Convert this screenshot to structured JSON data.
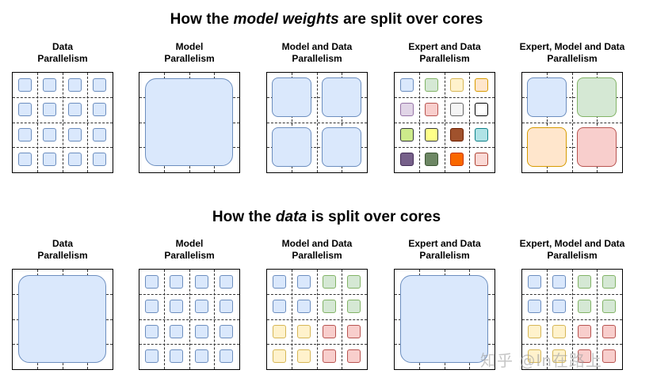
{
  "sections": [
    {
      "id": "weights",
      "title_prefix": "How the ",
      "title_emph": "model weights",
      "title_suffix": " are split over cores"
    },
    {
      "id": "data",
      "title_prefix": "How the ",
      "title_emph": "data",
      "title_suffix": " is split over cores"
    }
  ],
  "panel_labels": [
    [
      "Data",
      "Parallelism"
    ],
    [
      "Model",
      "Parallelism"
    ],
    [
      "Model and Data",
      "Parallelism"
    ],
    [
      "Expert and Data",
      "Parallelism"
    ],
    [
      "Expert, Model and Data",
      "Parallelism"
    ]
  ],
  "colors": {
    "blue": [
      "#dae8fc",
      "#6c8ebf"
    ],
    "green": [
      "#d5e8d4",
      "#82b366"
    ],
    "yellow": [
      "#fff2cc",
      "#d6b656"
    ],
    "orange": [
      "#ffe6cc",
      "#d79b00"
    ],
    "purple": [
      "#e1d5e7",
      "#9673a6"
    ],
    "red": [
      "#f8cecc",
      "#b85450"
    ],
    "gray": [
      "#f5f5f5",
      "#666666"
    ],
    "white": [
      "#ffffff",
      "#000000"
    ],
    "lime": [
      "#cdeb8b",
      "#36393d"
    ],
    "brightyellow": [
      "#ffff88",
      "#36393d"
    ],
    "brown": [
      "#a0522d",
      "#6d1f00"
    ],
    "cyan": [
      "#b0e3e6",
      "#0e8088"
    ],
    "darkpurple": [
      "#76608a",
      "#432d57"
    ],
    "darkgreen": [
      "#6d8764",
      "#3a5431"
    ],
    "darkorange": [
      "#fa6800",
      "#c73500"
    ],
    "pink": [
      "#fad9d5",
      "#ae4132"
    ]
  },
  "diagrams": {
    "weights": [
      {
        "layout": "small",
        "cells": [
          "blue",
          "blue",
          "blue",
          "blue",
          "blue",
          "blue",
          "blue",
          "blue",
          "blue",
          "blue",
          "blue",
          "blue",
          "blue",
          "blue",
          "blue",
          "blue"
        ]
      },
      {
        "layout": "full",
        "cells": [
          "blue"
        ]
      },
      {
        "layout": "quad",
        "cells": [
          "blue",
          "blue",
          "blue",
          "blue"
        ]
      },
      {
        "layout": "small",
        "cells": [
          "blue",
          "green",
          "yellow",
          "orange",
          "purple",
          "red",
          "gray",
          "white",
          "lime",
          "brightyellow",
          "brown",
          "cyan",
          "darkpurple",
          "darkgreen",
          "darkorange",
          "pink"
        ]
      },
      {
        "layout": "quad",
        "cells": [
          "blue",
          "green",
          "orange",
          "red"
        ]
      }
    ],
    "data": [
      {
        "layout": "full",
        "cells": [
          "blue"
        ]
      },
      {
        "layout": "small",
        "cells": [
          "blue",
          "blue",
          "blue",
          "blue",
          "blue",
          "blue",
          "blue",
          "blue",
          "blue",
          "blue",
          "blue",
          "blue",
          "blue",
          "blue",
          "blue",
          "blue"
        ]
      },
      {
        "layout": "small",
        "cells": [
          "blue",
          "blue",
          "green",
          "green",
          "blue",
          "blue",
          "green",
          "green",
          "yellow",
          "yellow",
          "red",
          "red",
          "yellow",
          "yellow",
          "red",
          "red"
        ]
      },
      {
        "layout": "full",
        "cells": [
          "blue"
        ]
      },
      {
        "layout": "small",
        "cells": [
          "blue",
          "blue",
          "green",
          "green",
          "blue",
          "blue",
          "green",
          "green",
          "yellow",
          "yellow",
          "red",
          "red",
          "yellow",
          "yellow",
          "red",
          "red"
        ]
      }
    ]
  },
  "watermark": "知乎 @In在路上"
}
